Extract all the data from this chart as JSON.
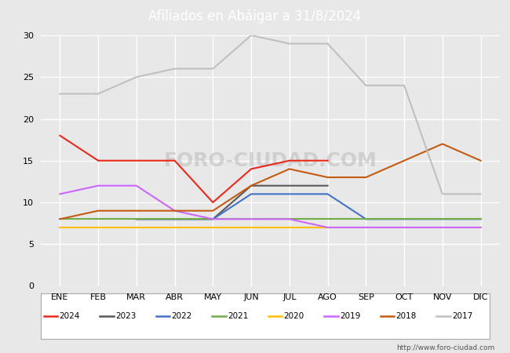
{
  "title": "Afiliados en Abáigar a 31/8/2024",
  "title_bgcolor": "#5b9bd5",
  "title_color": "white",
  "ylim": [
    0,
    30
  ],
  "yticks": [
    0,
    5,
    10,
    15,
    20,
    25,
    30
  ],
  "months": [
    "ENE",
    "FEB",
    "MAR",
    "ABR",
    "MAY",
    "JUN",
    "JUL",
    "AGO",
    "SEP",
    "OCT",
    "NOV",
    "DIC"
  ],
  "watermark": "FORO-CIUDAD.COM",
  "url": "http://www.foro-ciudad.com",
  "series": {
    "2024": {
      "color": "#e8291c",
      "data": [
        18,
        15,
        15,
        15,
        10,
        14,
        15,
        15,
        null,
        null,
        null,
        null
      ]
    },
    "2023": {
      "color": "#595959",
      "data": [
        null,
        null,
        8,
        8,
        8,
        12,
        12,
        12,
        null,
        null,
        null,
        null
      ]
    },
    "2022": {
      "color": "#4472c4",
      "data": [
        null,
        null,
        8,
        8,
        8,
        11,
        11,
        11,
        8,
        8,
        8,
        8
      ]
    },
    "2021": {
      "color": "#70ad47",
      "data": [
        8,
        8,
        8,
        8,
        8,
        8,
        8,
        8,
        8,
        8,
        8,
        8
      ]
    },
    "2020": {
      "color": "#ffc000",
      "data": [
        7,
        7,
        7,
        7,
        7,
        7,
        7,
        7,
        7,
        7,
        7,
        7
      ]
    },
    "2019": {
      "color": "#cc66ff",
      "data": [
        11,
        12,
        12,
        9,
        8,
        8,
        8,
        7,
        7,
        7,
        7,
        7
      ]
    },
    "2018": {
      "color": "#c55a11",
      "data": [
        8,
        9,
        9,
        9,
        9,
        12,
        14,
        13,
        13,
        15,
        17,
        15
      ]
    },
    "2017": {
      "color": "#c0c0c0",
      "data": [
        23,
        23,
        25,
        26,
        26,
        30,
        29,
        29,
        24,
        24,
        11,
        11
      ]
    }
  },
  "legend_order": [
    "2024",
    "2023",
    "2022",
    "2021",
    "2020",
    "2019",
    "2018",
    "2017"
  ],
  "plot_bgcolor": "#e8e8e8",
  "fig_bgcolor": "#e8e8e8",
  "grid_color": "#ffffff"
}
